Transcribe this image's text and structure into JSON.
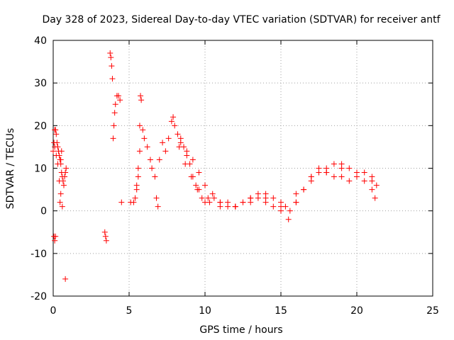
{
  "chart_data": {
    "type": "scatter",
    "title": "Day 328 of 2023, Sidereal Day-to-day VTEC variation (SDTVAR) for receiver antf",
    "xlabel": "GPS time / hours",
    "ylabel": "SDTVAR / TECUs",
    "xlim": [
      0,
      25
    ],
    "ylim": [
      -20,
      40
    ],
    "xticks": [
      0,
      5,
      10,
      15,
      20,
      25
    ],
    "yticks": [
      -20,
      -10,
      0,
      10,
      20,
      30,
      40
    ],
    "xtick_labels": [
      "0",
      "5",
      "10",
      "15",
      "20",
      "25"
    ],
    "ytick_labels": [
      "-20",
      "-10",
      "0",
      "10",
      "20",
      "30",
      "40"
    ],
    "grid": true,
    "marker": "+",
    "color": "#ff0000",
    "series": [
      {
        "name": "SDTVAR",
        "x": [
          0.0,
          0.05,
          0.1,
          0.15,
          0.2,
          0.25,
          0.3,
          0.35,
          0.4,
          0.45,
          0.5,
          0.55,
          0.6,
          0.65,
          0.7,
          0.75,
          0.8,
          0.85,
          0.1,
          0.2,
          0.3,
          0.4,
          0.5,
          0.6,
          0.05,
          0.1,
          0.15,
          0.45,
          0.5,
          0.55,
          0.8,
          3.4,
          3.45,
          3.5,
          3.75,
          3.8,
          3.85,
          3.9,
          3.95,
          4.0,
          4.05,
          4.1,
          4.2,
          4.3,
          4.4,
          4.5,
          5.1,
          5.3,
          5.4,
          5.5,
          5.6,
          5.7,
          5.75,
          5.8,
          5.5,
          5.6,
          5.7,
          5.9,
          6.0,
          6.2,
          6.4,
          6.5,
          6.7,
          6.8,
          6.9,
          7.0,
          7.2,
          7.4,
          7.6,
          7.8,
          7.9,
          8.0,
          8.2,
          8.4,
          8.6,
          8.8,
          9.0,
          9.2,
          9.4,
          9.6,
          9.8,
          10.0,
          10.3,
          10.6,
          11.0,
          11.5,
          12.0,
          12.5,
          13.0,
          13.5,
          14.0,
          14.5,
          15.0,
          15.3,
          15.6,
          16.0,
          16.5,
          17.0,
          17.5,
          18.0,
          18.5,
          19.0,
          19.5,
          20.0,
          20.5,
          21.0,
          21.3,
          8.4,
          8.8,
          9.2,
          9.6,
          10.0,
          10.5,
          11.0,
          11.5,
          12.0,
          12.5,
          13.0,
          13.5,
          14.0,
          14.5,
          15.0,
          15.5,
          16.0,
          16.5,
          17.0,
          17.5,
          18.0,
          18.5,
          19.0,
          19.5,
          20.0,
          20.5,
          21.0,
          21.2,
          8.3,
          8.7,
          9.1,
          9.5,
          10.2,
          11.0,
          12.0,
          13.0,
          14.0,
          15.0,
          16.0,
          17.0,
          18.0,
          19.0,
          20.0,
          21.0
        ],
        "y": [
          14,
          16,
          19,
          19,
          18,
          16,
          15,
          14,
          13,
          12,
          11,
          9,
          8,
          7,
          6,
          8,
          9,
          10,
          15,
          13,
          11,
          7,
          4,
          1,
          -6,
          -7,
          -6,
          2,
          12,
          14,
          -16,
          -5,
          -6,
          -7,
          37,
          36,
          34,
          31,
          17,
          20,
          23,
          25,
          27,
          27,
          26,
          2,
          2,
          2,
          3,
          5,
          8,
          20,
          27,
          26,
          6,
          10,
          14,
          19,
          17,
          15,
          12,
          10,
          8,
          3,
          1,
          12,
          16,
          14,
          17,
          21,
          22,
          20,
          18,
          17,
          15,
          13,
          11,
          8,
          6,
          5,
          3,
          2,
          2,
          3,
          2,
          2,
          1,
          2,
          3,
          4,
          4,
          3,
          2,
          1,
          0,
          2,
          5,
          8,
          10,
          10,
          11,
          11,
          10,
          9,
          9,
          8,
          6,
          16,
          14,
          12,
          9,
          6,
          4,
          2,
          1,
          1,
          2,
          3,
          3,
          2,
          1,
          0,
          -2,
          2,
          5,
          8,
          9,
          9,
          8,
          8,
          7,
          8,
          7,
          5,
          3,
          15,
          11,
          8,
          5,
          3,
          1,
          1,
          2,
          3,
          1,
          4,
          7,
          9,
          10,
          9,
          7
        ]
      }
    ]
  }
}
